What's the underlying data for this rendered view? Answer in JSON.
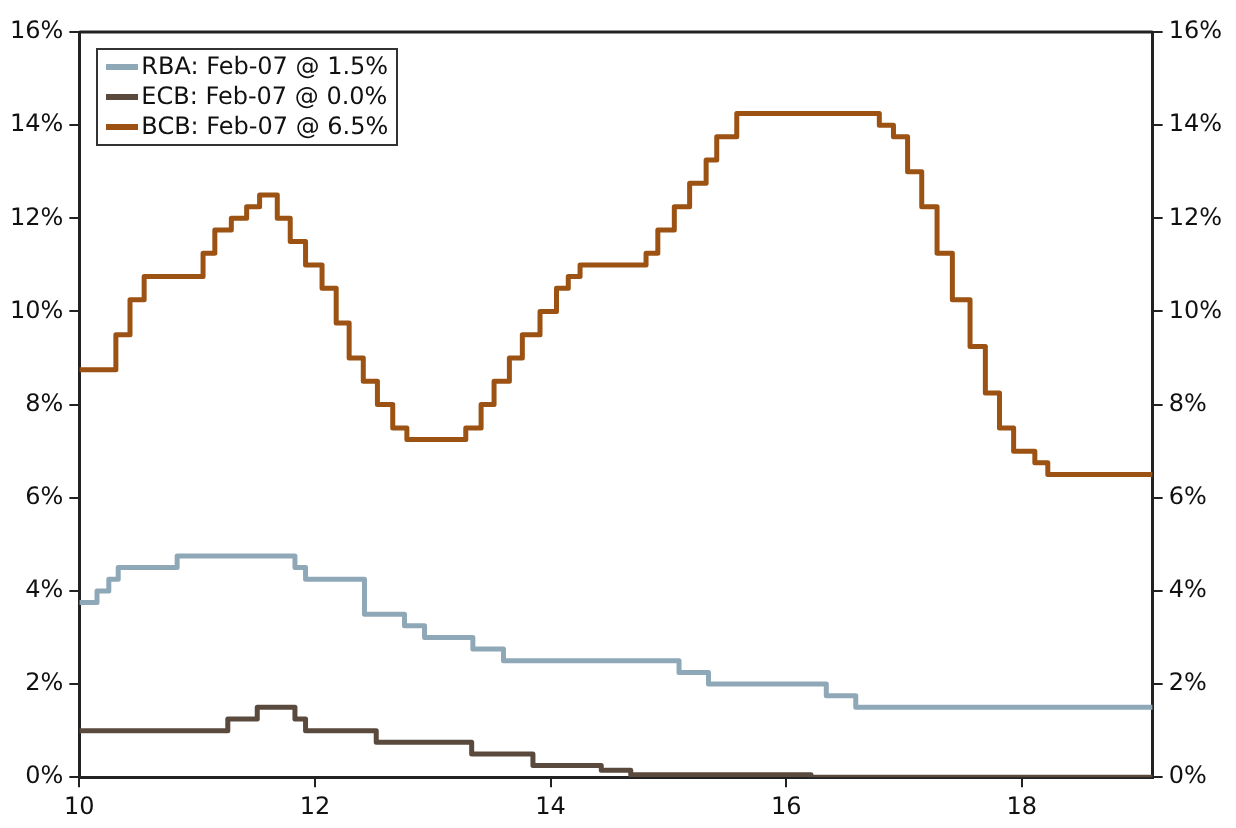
{
  "chart_data": {
    "type": "step",
    "xlim": [
      10,
      19.11
    ],
    "xticks": [
      10,
      12,
      14,
      16,
      18
    ],
    "ylim": [
      0,
      16
    ],
    "yticks": [
      {
        "value": 0,
        "label": "0%"
      },
      {
        "value": 2,
        "label": "2%"
      },
      {
        "value": 4,
        "label": "4%"
      },
      {
        "value": 6,
        "label": "6%"
      },
      {
        "value": 8,
        "label": "8%"
      },
      {
        "value": 10,
        "label": "10%"
      },
      {
        "value": 12,
        "label": "12%"
      },
      {
        "value": 14,
        "label": "14%"
      },
      {
        "value": 16,
        "label": "16%"
      }
    ],
    "y2lim": [
      0,
      16
    ],
    "y2ticks": [
      {
        "value": 0,
        "label": "0%"
      },
      {
        "value": 2,
        "label": "2%"
      },
      {
        "value": 4,
        "label": "4%"
      },
      {
        "value": 6,
        "label": "6%"
      },
      {
        "value": 8,
        "label": "8%"
      },
      {
        "value": 10,
        "label": "10%"
      },
      {
        "value": 12,
        "label": "12%"
      },
      {
        "value": 14,
        "label": "14%"
      },
      {
        "value": 16,
        "label": "16%"
      }
    ],
    "grid": false,
    "legend": "top left",
    "marker": "none",
    "line_style": "solid",
    "series": [
      {
        "name": "RBA: Feb-07 @ 1.5%",
        "color": "#8fa8b8",
        "x": [
          10,
          10.15,
          10.25,
          10.33,
          10.83,
          11.83,
          11.92,
          12.42,
          12.76,
          12.93,
          13.34,
          13.6,
          15.09,
          15.34,
          16.34,
          16.59,
          19.11
        ],
        "values": [
          3.75,
          4.0,
          4.25,
          4.5,
          4.75,
          4.5,
          4.25,
          3.5,
          3.25,
          3.0,
          2.75,
          2.5,
          2.25,
          2.0,
          1.75,
          1.5,
          1.5
        ]
      },
      {
        "name": "ECB: Feb-07 @ 0.0%",
        "color": "#5a4a3e",
        "x": [
          10,
          11.26,
          11.51,
          11.83,
          11.92,
          12.52,
          13.33,
          13.85,
          14.43,
          14.68,
          16.21,
          19.11
        ],
        "values": [
          1.0,
          1.25,
          1.5,
          1.25,
          1.0,
          0.75,
          0.5,
          0.25,
          0.15,
          0.05,
          0.0,
          0.0
        ]
      },
      {
        "name": "BCB: Feb-07 @ 6.5%",
        "color": "#9c5212",
        "x": [
          10,
          10.31,
          10.43,
          10.55,
          11.05,
          11.15,
          11.29,
          11.42,
          11.53,
          11.68,
          11.79,
          11.92,
          12.06,
          12.18,
          12.29,
          12.41,
          12.53,
          12.66,
          12.78,
          13.28,
          13.41,
          13.52,
          13.65,
          13.76,
          13.91,
          14.05,
          14.15,
          14.25,
          14.81,
          14.91,
          15.05,
          15.18,
          15.32,
          15.41,
          15.58,
          16.79,
          16.91,
          17.03,
          17.15,
          17.28,
          17.41,
          17.56,
          17.69,
          17.81,
          17.93,
          18.11,
          18.22,
          19.11
        ],
        "values": [
          8.75,
          9.5,
          10.25,
          10.75,
          11.25,
          11.75,
          12.0,
          12.25,
          12.5,
          12.0,
          11.5,
          11.0,
          10.5,
          9.75,
          9.0,
          8.5,
          8.0,
          7.5,
          7.25,
          7.5,
          8.0,
          8.5,
          9.0,
          9.5,
          10.0,
          10.5,
          10.75,
          11.0,
          11.25,
          11.75,
          12.25,
          12.75,
          13.25,
          13.75,
          14.25,
          14.0,
          13.75,
          13.0,
          12.25,
          11.25,
          10.25,
          9.25,
          8.25,
          7.5,
          7.0,
          6.75,
          6.5,
          6.5
        ]
      }
    ]
  }
}
